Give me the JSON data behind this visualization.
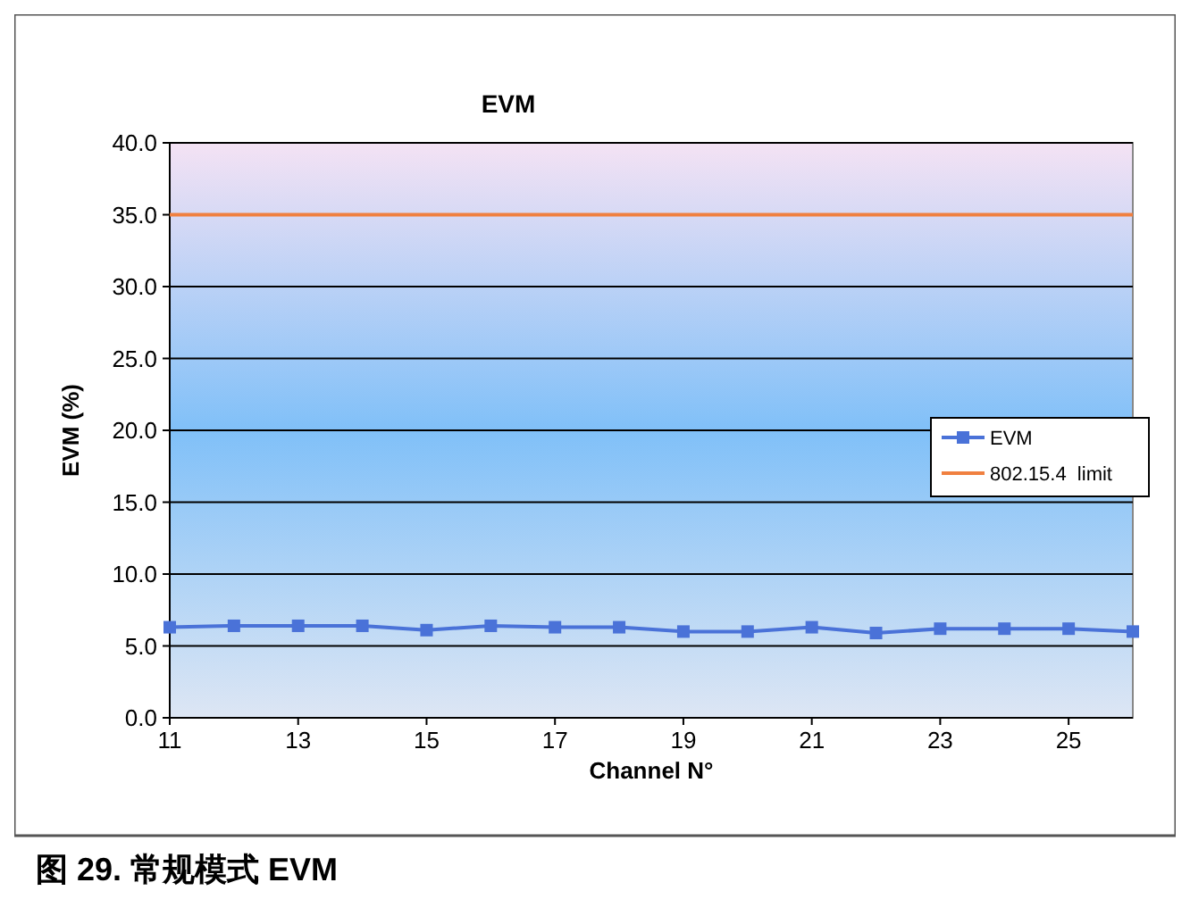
{
  "chart_data": {
    "type": "line",
    "title": "EVM",
    "xlabel": "Channel N°",
    "ylabel": "EVM (%)",
    "x": [
      11,
      12,
      13,
      14,
      15,
      16,
      17,
      18,
      19,
      20,
      21,
      22,
      23,
      24,
      25,
      26
    ],
    "series": [
      {
        "name": "EVM",
        "color": "#4a72d8",
        "marker": "square",
        "values": [
          6.3,
          6.4,
          6.4,
          6.4,
          6.1,
          6.4,
          6.3,
          6.3,
          6.0,
          6.0,
          6.3,
          5.9,
          6.2,
          6.2,
          6.2,
          6.0
        ]
      },
      {
        "name": "802.15.4  limit",
        "color": "#f08040",
        "marker": "none",
        "values": [
          35,
          35,
          35,
          35,
          35,
          35,
          35,
          35,
          35,
          35,
          35,
          35,
          35,
          35,
          35,
          35
        ]
      }
    ],
    "xlim": [
      11,
      26
    ],
    "xticks": [
      11,
      13,
      15,
      17,
      19,
      21,
      23,
      25
    ],
    "ylim": [
      0,
      40
    ],
    "yticks": [
      {
        "value": 0,
        "label": "0.0"
      },
      {
        "value": 5,
        "label": "5.0"
      },
      {
        "value": 10,
        "label": "10.0"
      },
      {
        "value": 15,
        "label": "15.0"
      },
      {
        "value": 20,
        "label": "20.0"
      },
      {
        "value": 25,
        "label": "25.0"
      },
      {
        "value": 30,
        "label": "30.0"
      },
      {
        "value": 35,
        "label": "35.0"
      },
      {
        "value": 40,
        "label": "40.0"
      }
    ],
    "grid": "y",
    "legend": "right",
    "annotations": [
      "图 29. 常规模式 EVM"
    ]
  }
}
